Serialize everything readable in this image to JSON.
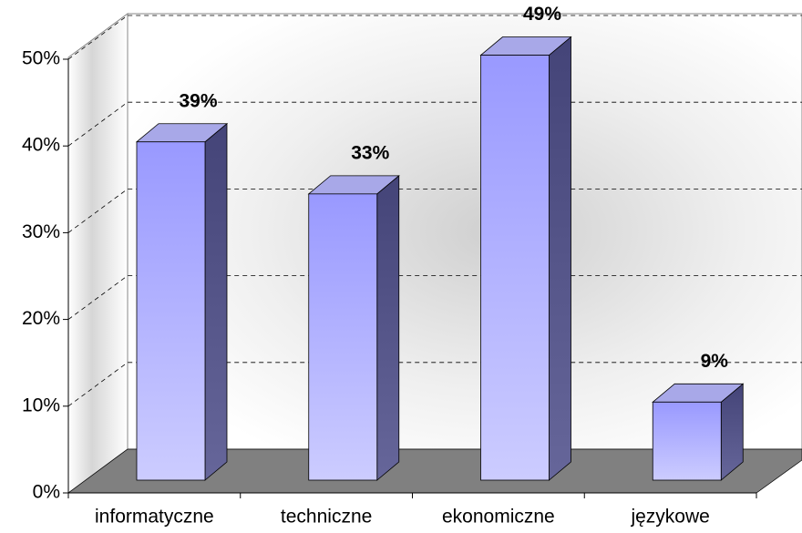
{
  "chart_data": {
    "type": "bar3d",
    "categories": [
      "informatyczne",
      "techniczne",
      "ekonomiczne",
      "językowe"
    ],
    "values": [
      39,
      33,
      49,
      9
    ],
    "value_labels": [
      "39%",
      "33%",
      "49%",
      "9%"
    ],
    "color": "#9999ff",
    "ylim": [
      0,
      50
    ],
    "yticks": [
      {
        "value": 0,
        "label": "0%"
      },
      {
        "value": 10,
        "label": "10%"
      },
      {
        "value": 20,
        "label": "20%"
      },
      {
        "value": 30,
        "label": "30%"
      },
      {
        "value": 40,
        "label": "40%"
      },
      {
        "value": 50,
        "label": "50%"
      }
    ],
    "grid": true
  }
}
